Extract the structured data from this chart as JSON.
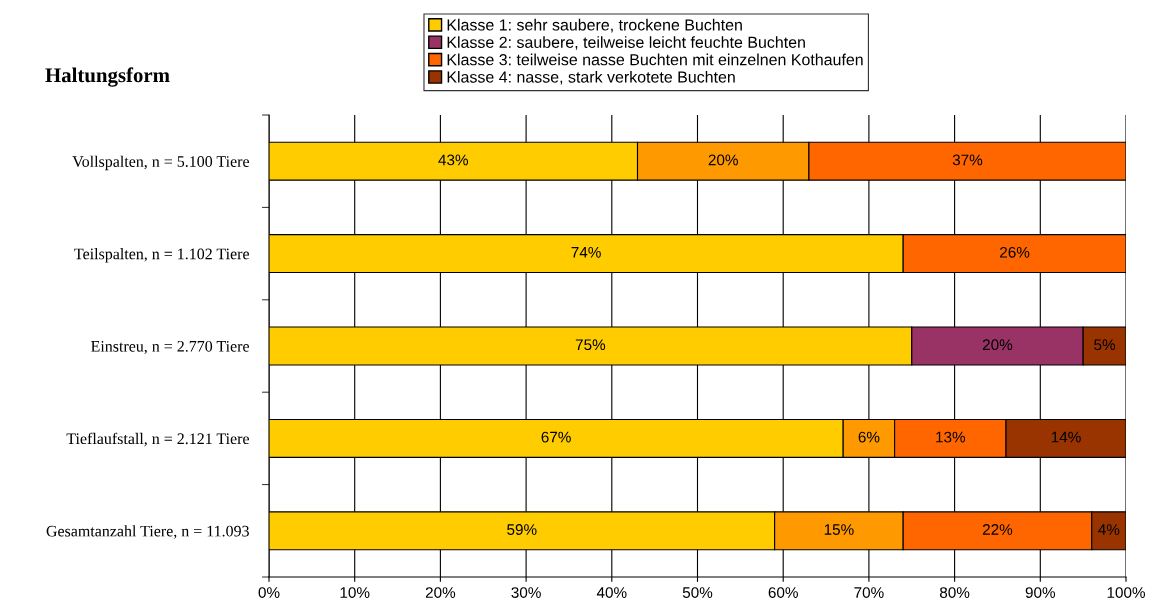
{
  "chart_data": {
    "type": "bar",
    "orientation": "horizontal",
    "stacked": true,
    "title": "Haltungsform",
    "categories": [
      "Vollspalten, n = 5.100 Tiere",
      "Teilspalten, n = 1.102 Tiere",
      "Einstreu, n = 2.770 Tiere",
      "Tieflaufstall, n = 2.121 Tiere",
      "Gesamtanzahl Tiere, n = 11.093"
    ],
    "series": [
      {
        "name": "Klasse 1: sehr saubere, trockene Buchten",
        "color": "#ffcc00",
        "values": [
          43,
          74,
          75,
          67,
          59
        ],
        "value_labels": [
          "43%",
          "74%",
          "75%",
          "67%",
          "59%"
        ]
      },
      {
        "name": "Klasse 2: saubere, teilweise leicht feuchte Buchten",
        "color": "#993366",
        "colors": [
          "#ff9900",
          "#ff9900",
          "#993366",
          "#ff9900",
          "#ff9900"
        ],
        "values": [
          20,
          null,
          20,
          6,
          15
        ],
        "value_labels": [
          "20%",
          null,
          "20%",
          "6%",
          "15%"
        ]
      },
      {
        "name": "Klasse 3: teilweise nasse Buchten mit einzelnen Kothaufen",
        "color": "#ff6600",
        "values": [
          37,
          26,
          null,
          13,
          22
        ],
        "value_labels": [
          "37%",
          "26%",
          null,
          "13%",
          "22%"
        ]
      },
      {
        "name": "Klasse 4: nasse, stark verkotete Buchten",
        "color": "#993300",
        "values": [
          null,
          null,
          5,
          14,
          4
        ],
        "value_labels": [
          null,
          null,
          "5%",
          "14%",
          "4%"
        ]
      }
    ],
    "xlim": [
      0,
      100
    ],
    "xticks": [
      {
        "value": 0,
        "label": "0%"
      },
      {
        "value": 10,
        "label": "10%"
      },
      {
        "value": 20,
        "label": "20%"
      },
      {
        "value": 30,
        "label": "30%"
      },
      {
        "value": 40,
        "label": "40%"
      },
      {
        "value": 50,
        "label": "50%"
      },
      {
        "value": 60,
        "label": "60%"
      },
      {
        "value": 70,
        "label": "70%"
      },
      {
        "value": 80,
        "label": "80%"
      },
      {
        "value": 90,
        "label": "90%"
      },
      {
        "value": 100,
        "label": "100%"
      }
    ],
    "grid": "x",
    "legend": "top"
  }
}
